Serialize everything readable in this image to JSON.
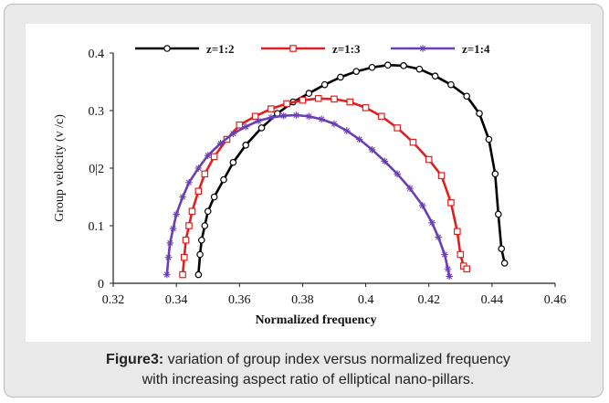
{
  "caption": {
    "label": "Figure3:",
    "text_line1": " variation of group index versus normalized frequency",
    "text_line2": "with increasing aspect ratio of elliptical nano-pillars."
  },
  "chart_data": {
    "type": "line",
    "title": "",
    "xlabel": "Normalized frequency",
    "ylabel": "Group velocity  (v /c)",
    "xlim": [
      0.32,
      0.46
    ],
    "ylim": [
      0,
      0.4
    ],
    "xticks": [
      "0.32",
      "0.34",
      "0.36",
      "0.38",
      "0.4",
      "0.42",
      "0.44",
      "0.46"
    ],
    "yticks": [
      "0",
      "0.1",
      "0|2",
      "0.3",
      "0.4"
    ],
    "grid": false,
    "legend_position": "top",
    "series": [
      {
        "name": "z=1:2",
        "color": "#000000",
        "marker": "circle",
        "x": [
          0.347,
          0.3475,
          0.348,
          0.349,
          0.35,
          0.352,
          0.355,
          0.358,
          0.362,
          0.367,
          0.372,
          0.377,
          0.382,
          0.387,
          0.392,
          0.397,
          0.402,
          0.407,
          0.412,
          0.417,
          0.422,
          0.427,
          0.432,
          0.436,
          0.439,
          0.441,
          0.442,
          0.443,
          0.444
        ],
        "y": [
          0.015,
          0.05,
          0.075,
          0.1,
          0.125,
          0.15,
          0.18,
          0.21,
          0.24,
          0.27,
          0.295,
          0.315,
          0.33,
          0.345,
          0.358,
          0.368,
          0.375,
          0.379,
          0.378,
          0.372,
          0.36,
          0.345,
          0.325,
          0.295,
          0.25,
          0.19,
          0.12,
          0.06,
          0.035
        ]
      },
      {
        "name": "z=1:3",
        "color": "#e02020",
        "marker": "square",
        "x": [
          0.342,
          0.3425,
          0.343,
          0.344,
          0.345,
          0.347,
          0.349,
          0.352,
          0.356,
          0.36,
          0.365,
          0.37,
          0.375,
          0.38,
          0.385,
          0.39,
          0.395,
          0.4,
          0.405,
          0.41,
          0.415,
          0.42,
          0.424,
          0.427,
          0.429,
          0.43,
          0.431,
          0.432
        ],
        "y": [
          0.015,
          0.045,
          0.075,
          0.1,
          0.125,
          0.16,
          0.19,
          0.22,
          0.25,
          0.275,
          0.29,
          0.303,
          0.312,
          0.318,
          0.321,
          0.32,
          0.315,
          0.305,
          0.29,
          0.27,
          0.245,
          0.215,
          0.187,
          0.14,
          0.09,
          0.05,
          0.03,
          0.025
        ]
      },
      {
        "name": "z=1:4",
        "color": "#6a3fb5",
        "marker": "star",
        "x": [
          0.337,
          0.3375,
          0.338,
          0.339,
          0.34,
          0.342,
          0.344,
          0.347,
          0.35,
          0.354,
          0.358,
          0.362,
          0.366,
          0.37,
          0.374,
          0.378,
          0.382,
          0.386,
          0.39,
          0.394,
          0.398,
          0.402,
          0.406,
          0.41,
          0.414,
          0.418,
          0.421,
          0.423,
          0.425,
          0.426,
          0.4265
        ],
        "y": [
          0.015,
          0.045,
          0.07,
          0.095,
          0.12,
          0.15,
          0.175,
          0.2,
          0.222,
          0.243,
          0.26,
          0.272,
          0.282,
          0.288,
          0.291,
          0.292,
          0.29,
          0.285,
          0.277,
          0.265,
          0.25,
          0.232,
          0.212,
          0.19,
          0.165,
          0.135,
          0.105,
          0.08,
          0.05,
          0.025,
          0.012
        ]
      }
    ]
  }
}
